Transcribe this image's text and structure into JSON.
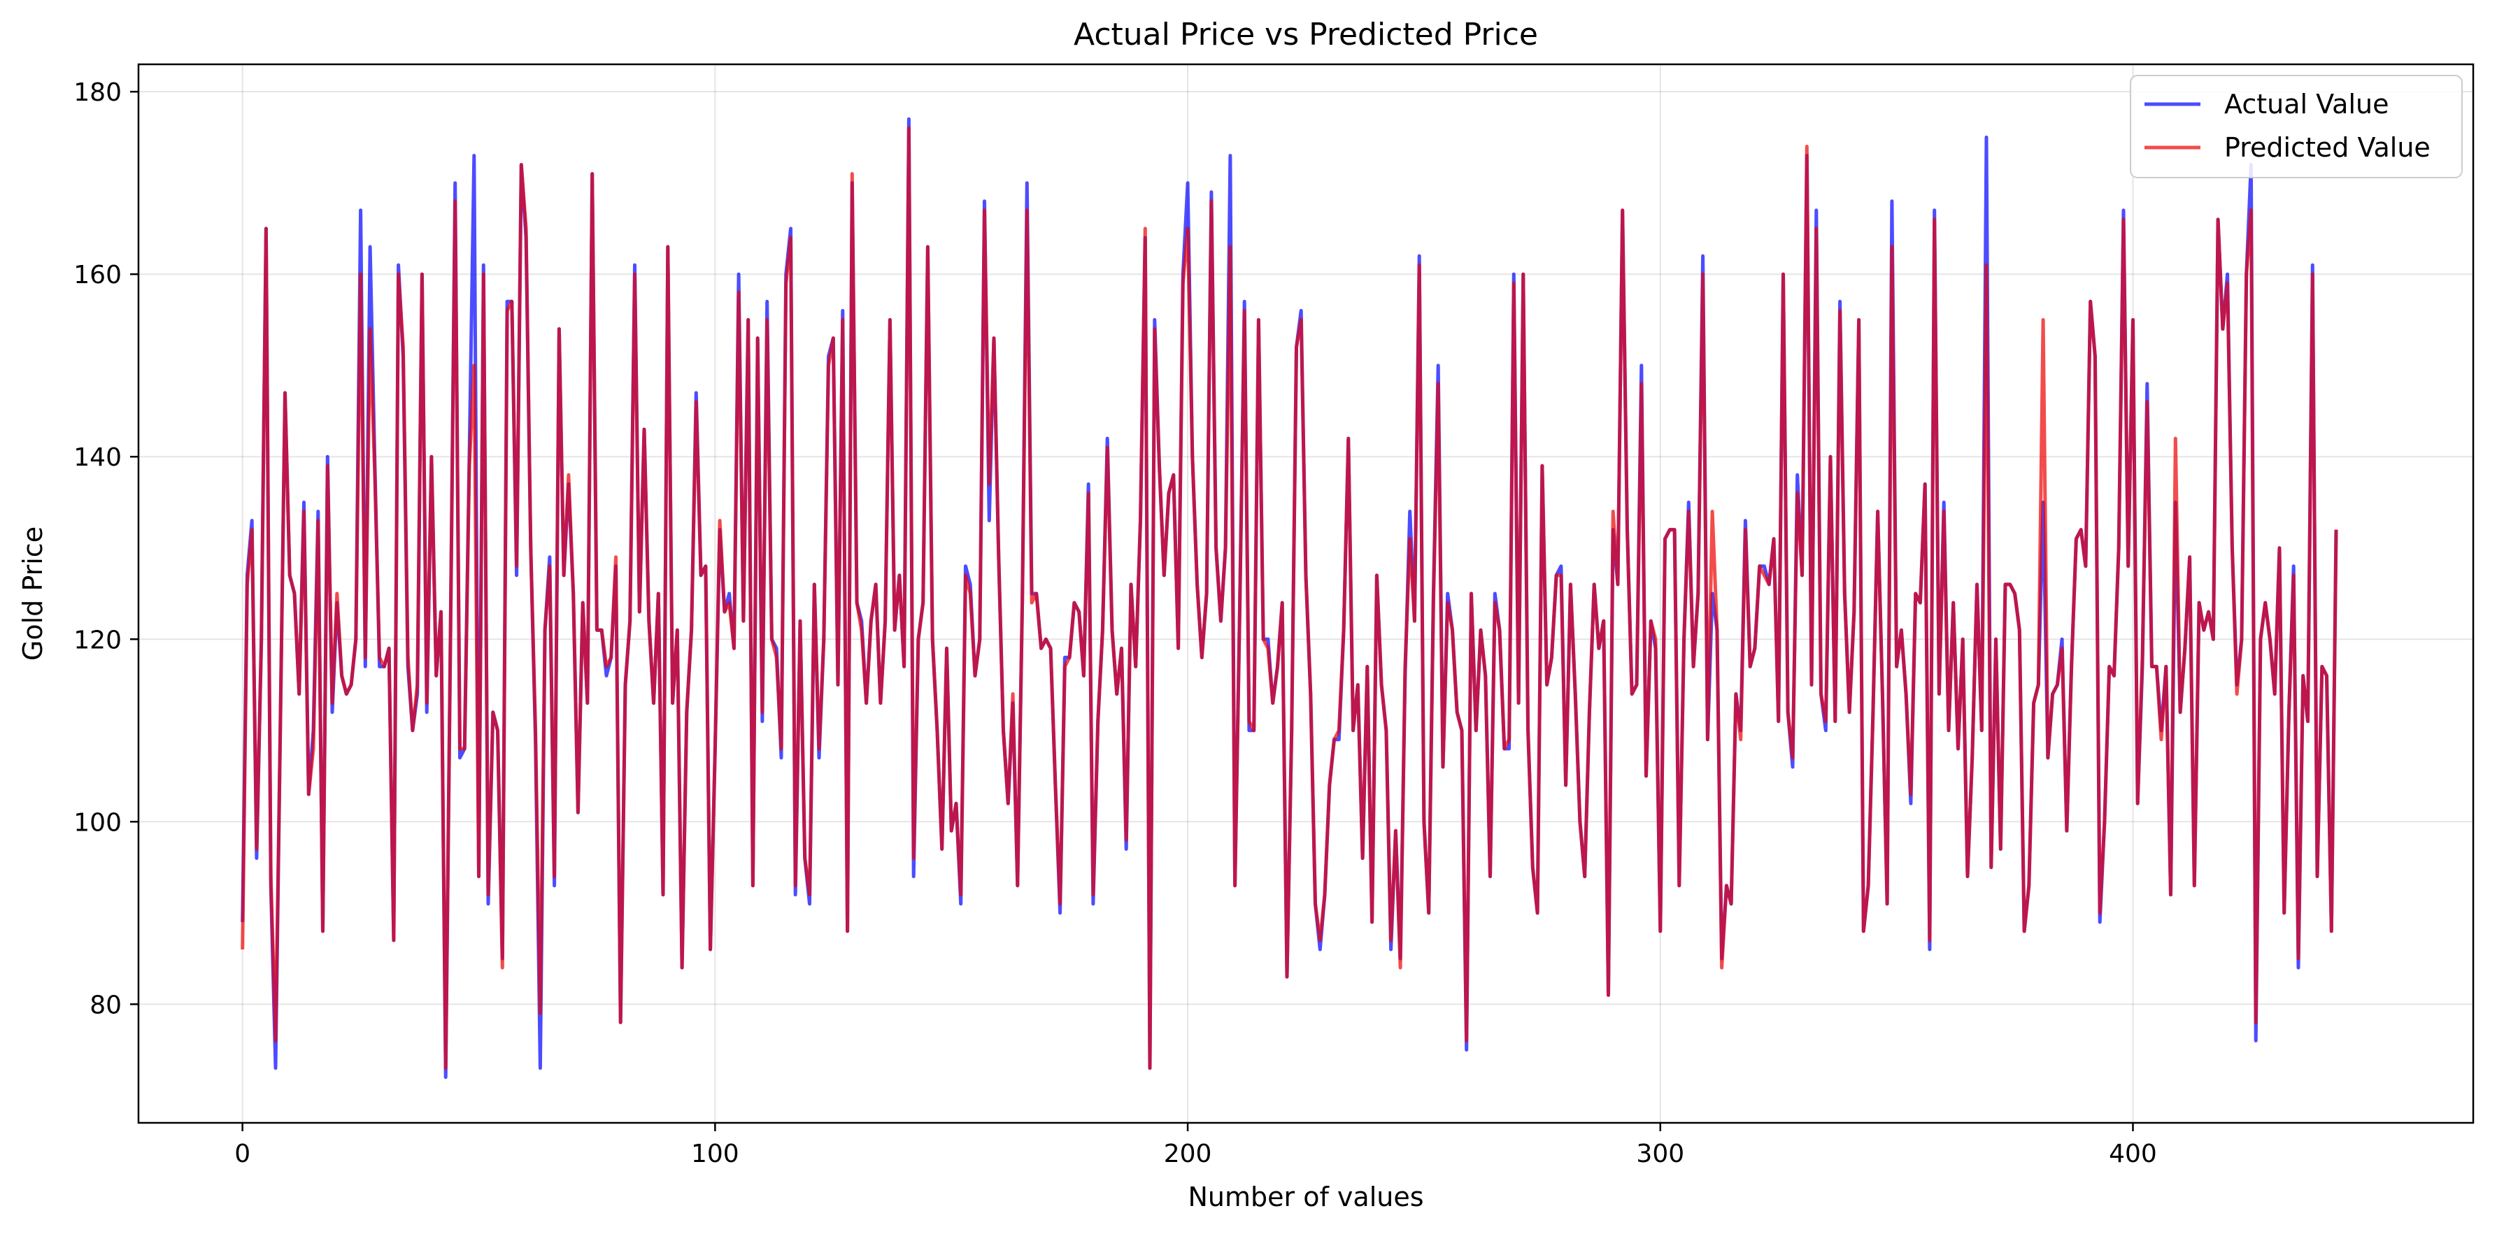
{
  "chart_data": {
    "type": "line",
    "title": "Actual Price vs Predicted Price",
    "xlabel": "Number of values",
    "ylabel": "Gold Price",
    "xlim": [
      -22,
      472
    ],
    "ylim": [
      67,
      183
    ],
    "xticks": [
      0,
      100,
      200,
      300,
      400
    ],
    "yticks": [
      80,
      100,
      120,
      140,
      160,
      180
    ],
    "grid": true,
    "legend_position": "top-right",
    "series": [
      {
        "name": "Actual Value",
        "color": "#0000ff",
        "values": [
          89,
          127,
          133,
          96,
          120,
          165,
          93,
          73,
          110,
          147,
          127,
          125,
          114,
          135,
          103,
          110,
          134,
          88,
          140,
          112,
          124,
          116,
          114,
          115,
          120,
          167,
          117,
          163,
          139,
          117,
          117,
          119,
          87,
          161,
          151,
          117,
          110,
          114,
          160,
          112,
          140,
          116,
          123,
          72,
          120,
          170,
          107,
          108,
          140,
          173,
          94,
          161,
          91,
          112,
          110,
          85,
          157,
          157,
          127,
          172,
          164,
          130,
          109,
          73,
          121,
          129,
          93,
          154,
          127,
          137,
          125,
          101,
          124,
          113,
          171,
          121,
          121,
          116,
          118,
          128,
          78,
          115,
          122,
          161,
          123,
          143,
          122,
          113,
          125,
          92,
          163,
          113,
          121,
          84,
          112,
          121,
          147,
          127,
          128,
          86,
          108,
          132,
          123,
          125,
          119,
          160,
          122,
          155,
          93,
          153,
          111,
          157,
          120,
          119,
          107,
          160,
          165,
          92,
          122,
          96,
          91,
          126,
          107,
          120,
          151,
          153,
          115,
          156,
          88,
          170,
          124,
          122,
          113,
          122,
          126,
          113,
          122,
          155,
          121,
          127,
          117,
          177,
          94,
          120,
          124,
          163,
          120,
          110,
          97,
          119,
          99,
          102,
          91,
          128,
          126,
          116,
          120,
          168,
          133,
          153,
          129,
          110,
          102,
          113,
          93,
          124,
          170,
          125,
          125,
          119,
          120,
          119,
          104,
          90,
          118,
          118,
          124,
          123,
          116,
          137,
          91,
          111,
          121,
          142,
          121,
          114,
          119,
          97,
          126,
          117,
          133,
          164,
          73,
          155,
          139,
          127,
          136,
          138,
          119,
          160,
          170,
          140,
          126,
          118,
          125,
          169,
          130,
          122,
          130,
          173,
          93,
          123,
          157,
          110,
          110,
          155,
          120,
          120,
          113,
          117,
          124,
          83,
          110,
          152,
          156,
          127,
          114,
          91,
          86,
          92,
          104,
          109,
          109,
          121,
          142,
          110,
          115,
          96,
          117,
          89,
          127,
          115,
          110,
          86,
          99,
          85,
          116,
          134,
          122,
          162,
          100,
          90,
          125,
          150,
          106,
          125,
          121,
          112,
          110,
          75,
          125,
          110,
          121,
          116,
          94,
          125,
          121,
          108,
          108,
          160,
          113,
          160,
          110,
          95,
          90,
          139,
          115,
          118,
          127,
          128,
          104,
          126,
          114,
          100,
          94,
          112,
          126,
          119,
          122,
          81,
          132,
          126,
          167,
          132,
          114,
          115,
          150,
          105,
          122,
          119,
          88,
          131,
          132,
          132,
          93,
          120,
          135,
          117,
          125,
          162,
          109,
          125,
          121,
          85,
          93,
          91,
          114,
          110,
          133,
          117,
          119,
          128,
          128,
          126,
          131,
          111,
          160,
          112,
          106,
          138,
          127,
          173,
          115,
          167,
          114,
          110,
          140,
          111,
          157,
          125,
          112,
          123,
          155,
          88,
          93,
          112,
          134,
          114,
          91,
          168,
          117,
          121,
          114,
          102,
          125,
          124,
          137,
          86,
          167,
          114,
          135,
          110,
          124,
          108,
          120,
          94,
          107,
          126,
          110,
          175,
          95,
          120,
          97,
          126,
          126,
          125,
          121,
          88,
          93,
          113,
          115,
          135,
          107,
          114,
          115,
          120,
          99,
          117,
          131,
          132,
          128,
          157,
          151,
          89,
          100,
          117,
          116,
          130,
          167,
          128,
          155,
          102,
          117,
          148,
          117,
          117,
          110,
          117,
          92,
          135,
          112,
          119,
          129,
          93,
          124,
          121,
          123,
          120,
          166,
          154,
          160,
          130,
          115,
          120,
          160,
          172,
          76,
          120,
          124,
          120,
          114,
          130,
          90,
          112,
          128,
          84,
          116,
          111,
          161,
          94,
          117,
          116,
          88,
          132
        ]
      },
      {
        "name": "Predicted Value",
        "color": "#ee0000",
        "values": [
          86,
          126,
          132,
          97,
          120,
          165,
          94,
          76,
          110,
          147,
          127,
          125,
          114,
          134,
          103,
          108,
          133,
          88,
          139,
          113,
          125,
          116,
          114,
          115,
          120,
          160,
          118,
          154,
          138,
          118,
          117,
          119,
          87,
          160,
          152,
          118,
          110,
          115,
          160,
          113,
          140,
          116,
          123,
          73,
          120,
          168,
          108,
          108,
          139,
          150,
          94,
          160,
          92,
          112,
          110,
          84,
          156,
          157,
          128,
          172,
          165,
          130,
          110,
          79,
          121,
          128,
          94,
          154,
          127,
          138,
          125,
          101,
          124,
          113,
          171,
          121,
          121,
          117,
          118,
          129,
          78,
          115,
          122,
          160,
          123,
          143,
          122,
          113,
          125,
          92,
          163,
          113,
          121,
          84,
          112,
          121,
          146,
          127,
          128,
          86,
          108,
          133,
          123,
          124,
          119,
          158,
          122,
          155,
          93,
          153,
          112,
          155,
          120,
          118,
          108,
          159,
          164,
          93,
          122,
          96,
          92,
          126,
          108,
          120,
          150,
          153,
          115,
          155,
          88,
          171,
          124,
          121,
          113,
          122,
          126,
          113,
          122,
          155,
          121,
          127,
          117,
          176,
          96,
          120,
          124,
          163,
          120,
          110,
          97,
          119,
          99,
          102,
          92,
          127,
          125,
          116,
          120,
          167,
          137,
          153,
          129,
          110,
          102,
          114,
          93,
          124,
          167,
          124,
          125,
          119,
          120,
          119,
          104,
          91,
          117,
          118,
          124,
          123,
          116,
          136,
          92,
          111,
          121,
          141,
          121,
          114,
          119,
          98,
          126,
          117,
          133,
          165,
          73,
          154,
          139,
          127,
          136,
          138,
          119,
          159,
          165,
          140,
          126,
          118,
          125,
          168,
          130,
          122,
          130,
          163,
          93,
          123,
          156,
          111,
          110,
          155,
          120,
          119,
          113,
          117,
          124,
          83,
          110,
          152,
          155,
          127,
          114,
          91,
          87,
          92,
          104,
          109,
          110,
          121,
          142,
          110,
          115,
          96,
          117,
          89,
          127,
          115,
          110,
          87,
          99,
          84,
          117,
          131,
          122,
          161,
          100,
          90,
          124,
          148,
          106,
          124,
          121,
          112,
          110,
          76,
          125,
          110,
          121,
          116,
          94,
          124,
          121,
          108,
          109,
          159,
          113,
          160,
          110,
          95,
          90,
          139,
          115,
          118,
          127,
          127,
          104,
          126,
          114,
          100,
          94,
          112,
          126,
          119,
          122,
          81,
          134,
          126,
          167,
          132,
          114,
          115,
          148,
          105,
          122,
          120,
          88,
          131,
          132,
          132,
          93,
          120,
          134,
          117,
          125,
          160,
          109,
          134,
          121,
          84,
          93,
          91,
          114,
          109,
          132,
          117,
          119,
          128,
          127,
          126,
          131,
          111,
          160,
          112,
          107,
          136,
          127,
          174,
          115,
          165,
          114,
          111,
          140,
          111,
          156,
          125,
          112,
          123,
          155,
          88,
          93,
          112,
          134,
          114,
          91,
          163,
          117,
          121,
          114,
          103,
          125,
          124,
          137,
          87,
          166,
          114,
          134,
          110,
          124,
          108,
          120,
          94,
          107,
          126,
          110,
          161,
          95,
          120,
          97,
          126,
          126,
          125,
          121,
          88,
          93,
          113,
          115,
          155,
          107,
          114,
          115,
          119,
          99,
          117,
          131,
          132,
          128,
          157,
          151,
          90,
          100,
          117,
          116,
          130,
          166,
          128,
          155,
          102,
          118,
          146,
          117,
          117,
          109,
          117,
          92,
          142,
          112,
          119,
          129,
          93,
          124,
          121,
          123,
          120,
          166,
          154,
          159,
          130,
          114,
          120,
          160,
          167,
          78,
          120,
          124,
          120,
          114,
          130,
          90,
          112,
          127,
          85,
          116,
          111,
          160,
          94,
          117,
          116,
          88,
          132
        ]
      }
    ]
  }
}
